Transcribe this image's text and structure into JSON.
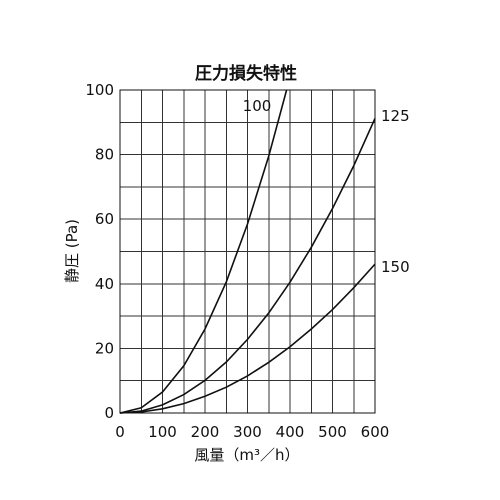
{
  "chart_data": {
    "type": "line",
    "title": "圧力損失特性",
    "xlabel": "風量（m³／h）",
    "ylabel": "静圧 (Pa)",
    "xlim": [
      0,
      600
    ],
    "ylim": [
      0,
      100
    ],
    "x_ticks": [
      "0",
      "100",
      "200",
      "300",
      "400",
      "500",
      "600"
    ],
    "y_ticks": [
      "0",
      "20",
      "40",
      "60",
      "80",
      "100"
    ],
    "grid": true,
    "x_grid_step": 50,
    "y_grid_step": 10,
    "legend": "labels at curve ends",
    "series": [
      {
        "name": "100",
        "x": [
          0,
          50,
          100,
          150,
          200,
          250,
          300,
          350,
          392
        ],
        "y": [
          0,
          1.6,
          6.5,
          14.6,
          26,
          40.6,
          58.5,
          79.6,
          100
        ]
      },
      {
        "name": "125",
        "x": [
          0,
          50,
          100,
          150,
          200,
          250,
          300,
          350,
          400,
          450,
          500,
          550,
          600
        ],
        "y": [
          0,
          0.6,
          2.5,
          5.7,
          10.1,
          15.8,
          22.8,
          31.0,
          40.5,
          51.3,
          63.3,
          76.6,
          91.2
        ]
      },
      {
        "name": "150",
        "x": [
          0,
          50,
          100,
          150,
          200,
          250,
          300,
          350,
          400,
          450,
          500,
          550,
          600
        ],
        "y": [
          0,
          0.3,
          1.3,
          2.9,
          5.2,
          8.0,
          11.5,
          15.7,
          20.5,
          26.0,
          32.0,
          38.8,
          46.1
        ]
      }
    ]
  }
}
